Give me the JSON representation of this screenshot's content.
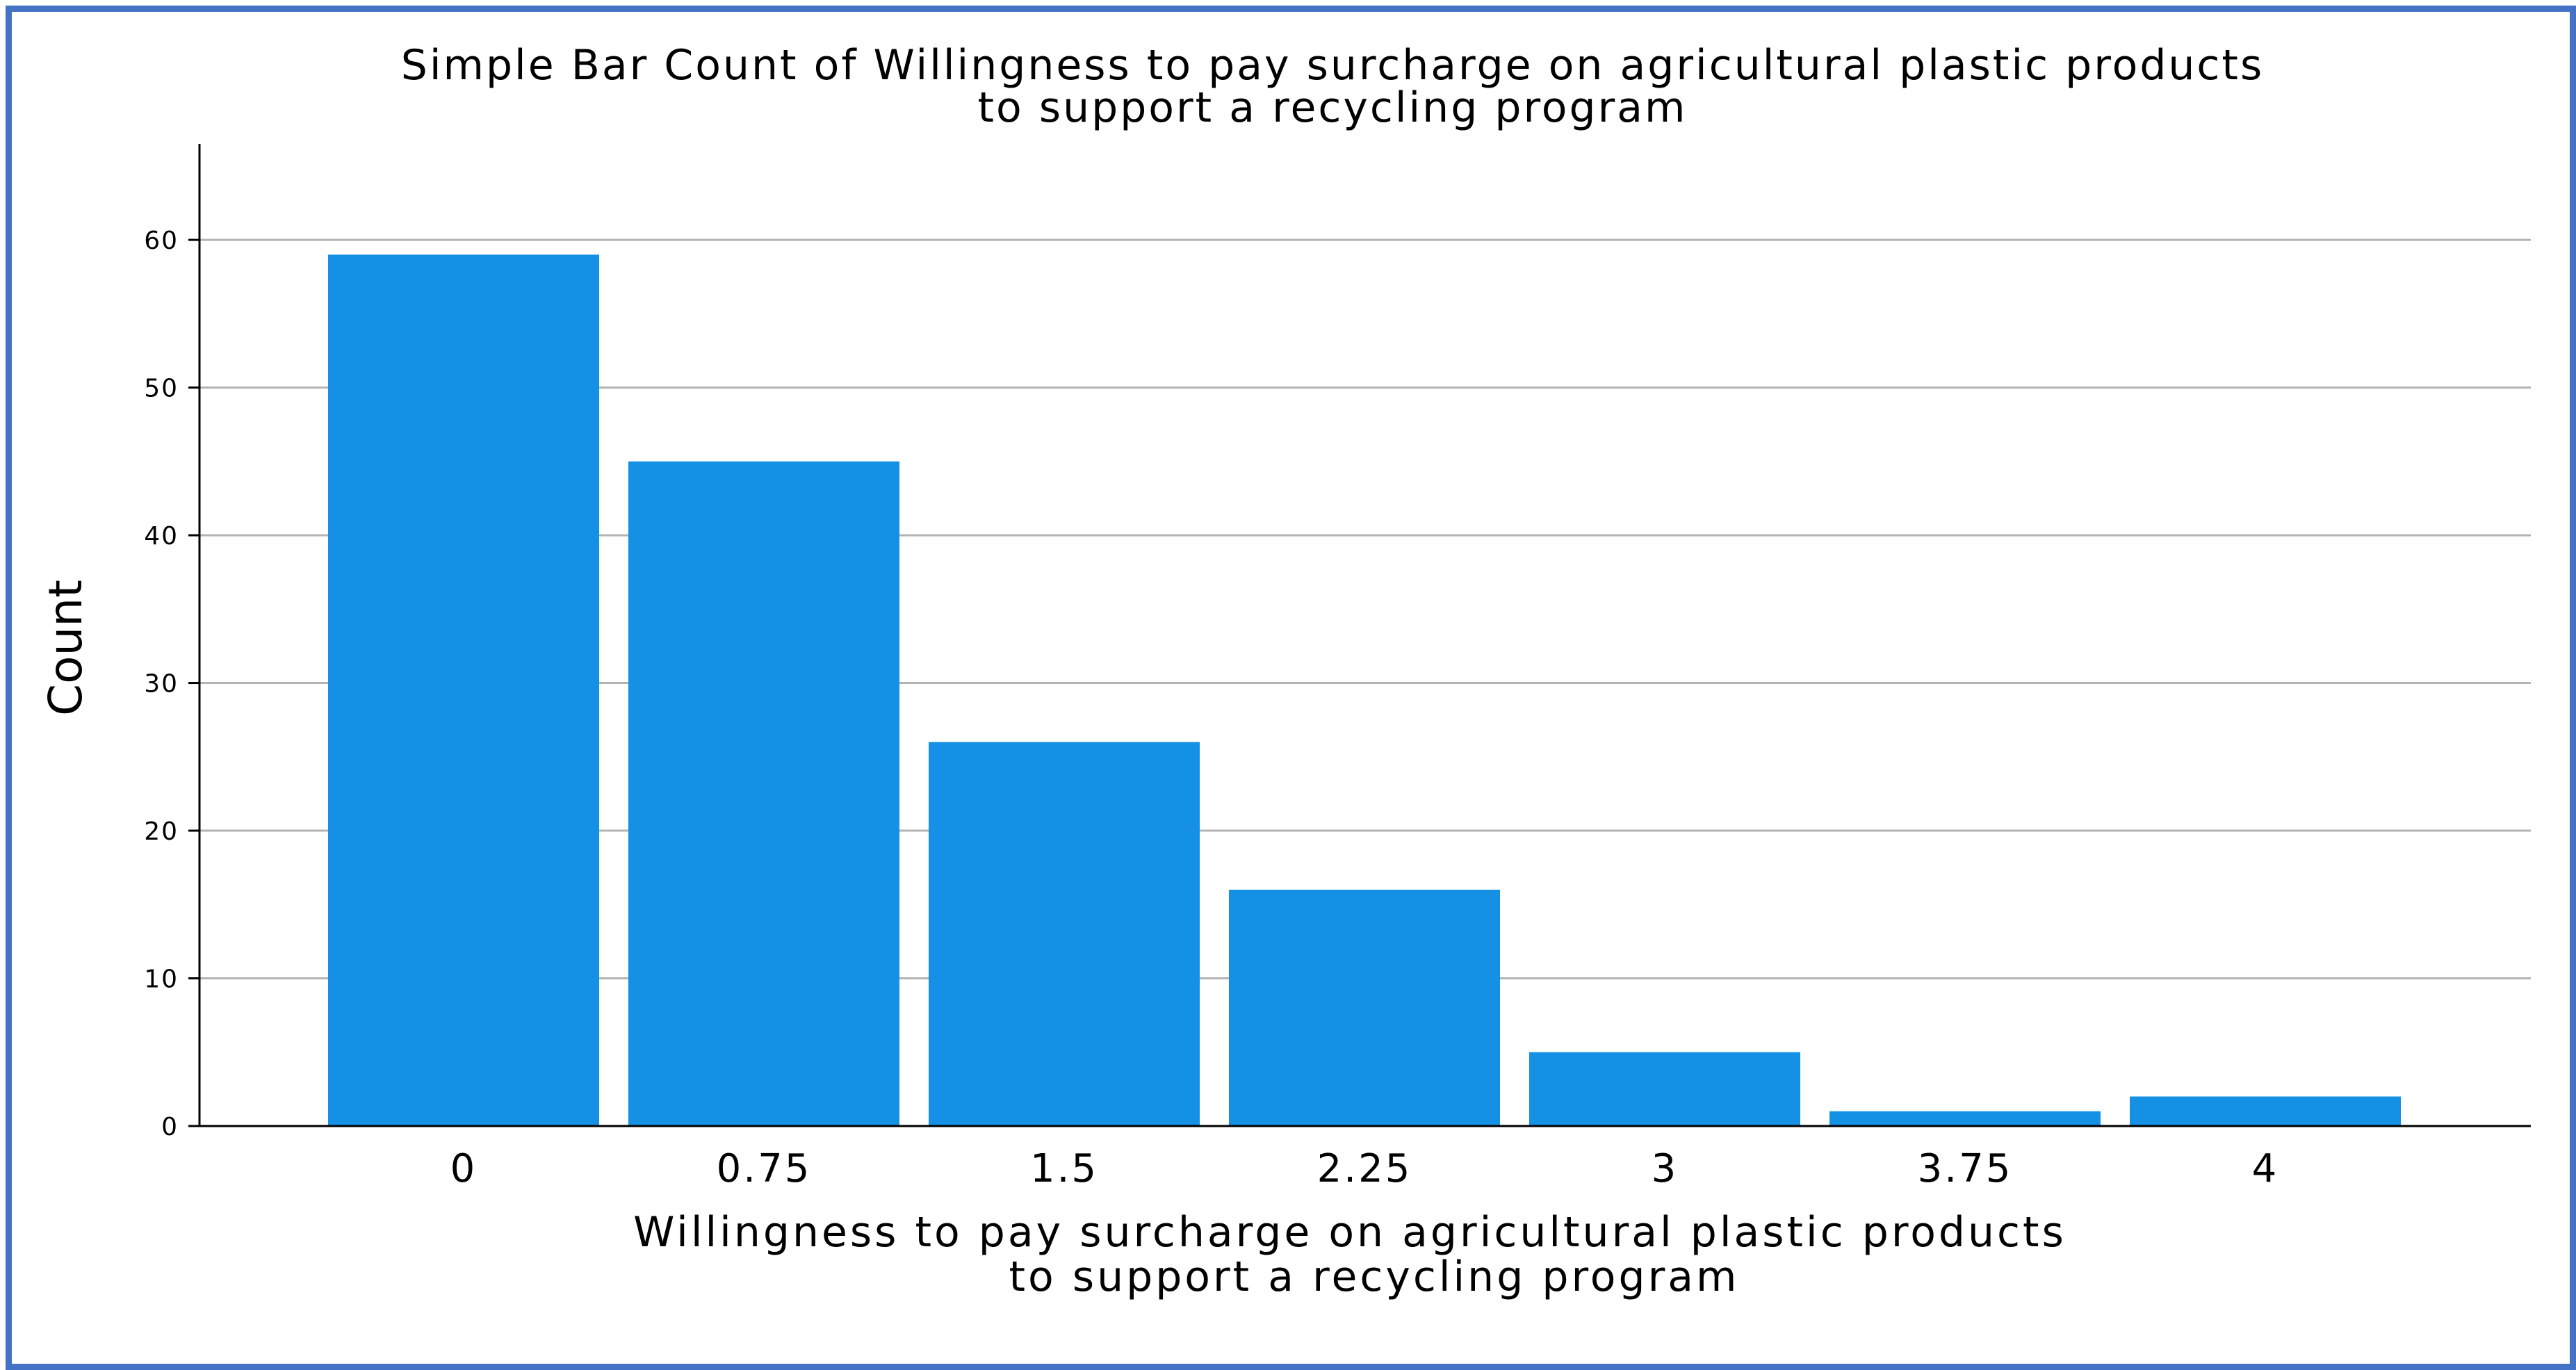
{
  "colors": {
    "frame": "#4473c5",
    "bar": "#1490e4",
    "grid": "#b3b3b3",
    "axis": "#000000"
  },
  "chart_data": {
    "type": "bar",
    "title": [
      "Simple Bar Count of Willingness to pay surcharge on agricultural plastic products",
      "to support a recycling program"
    ],
    "xlabel": [
      "Willingness to pay surcharge on agricultural plastic products",
      "to support a recycling program"
    ],
    "ylabel": "Count",
    "categories": [
      "0",
      "0.75",
      "1.5",
      "2.25",
      "3",
      "3.75",
      "4"
    ],
    "values": [
      59,
      45,
      26,
      16,
      5,
      1,
      2
    ],
    "yticks": [
      "0",
      "10",
      "20",
      "30",
      "40",
      "50",
      "60"
    ],
    "ylim": [
      0,
      66.5
    ],
    "grid": true,
    "legend": false
  }
}
